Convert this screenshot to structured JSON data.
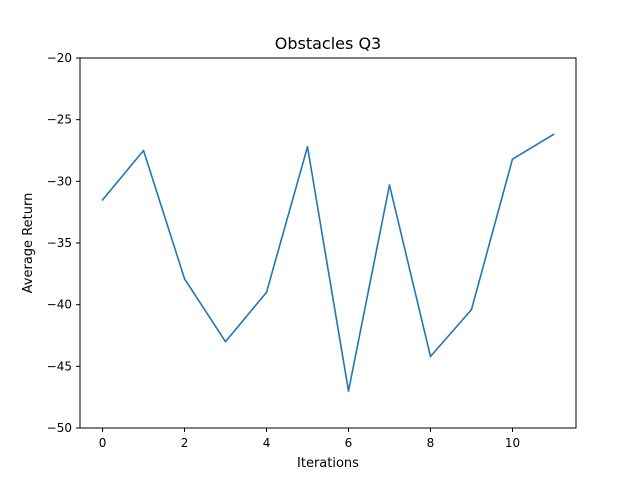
{
  "chart_data": {
    "type": "line",
    "title": "Obstacles Q3",
    "xlabel": "Iterations",
    "ylabel": "Average Return",
    "xlim": [
      -0.55,
      11.55
    ],
    "ylim": [
      -50,
      -20
    ],
    "x_ticks": [
      0,
      2,
      4,
      6,
      8,
      10
    ],
    "x_tick_labels": [
      "0",
      "2",
      "4",
      "6",
      "8",
      "10"
    ],
    "y_ticks": [
      -50,
      -45,
      -40,
      -35,
      -30,
      -25,
      -20
    ],
    "y_tick_labels": [
      "−50",
      "−45",
      "−40",
      "−35",
      "−30",
      "−25",
      "−20"
    ],
    "grid": false,
    "series": [
      {
        "color": "#1f77b4",
        "x": [
          0,
          1,
          2,
          3,
          4,
          5,
          6,
          7,
          8,
          9,
          10,
          11
        ],
        "y": [
          -31.5,
          -27.5,
          -37.9,
          -43.0,
          -39.0,
          -27.2,
          -47.0,
          -30.3,
          -44.2,
          -40.4,
          -28.2,
          -26.2
        ]
      }
    ]
  }
}
